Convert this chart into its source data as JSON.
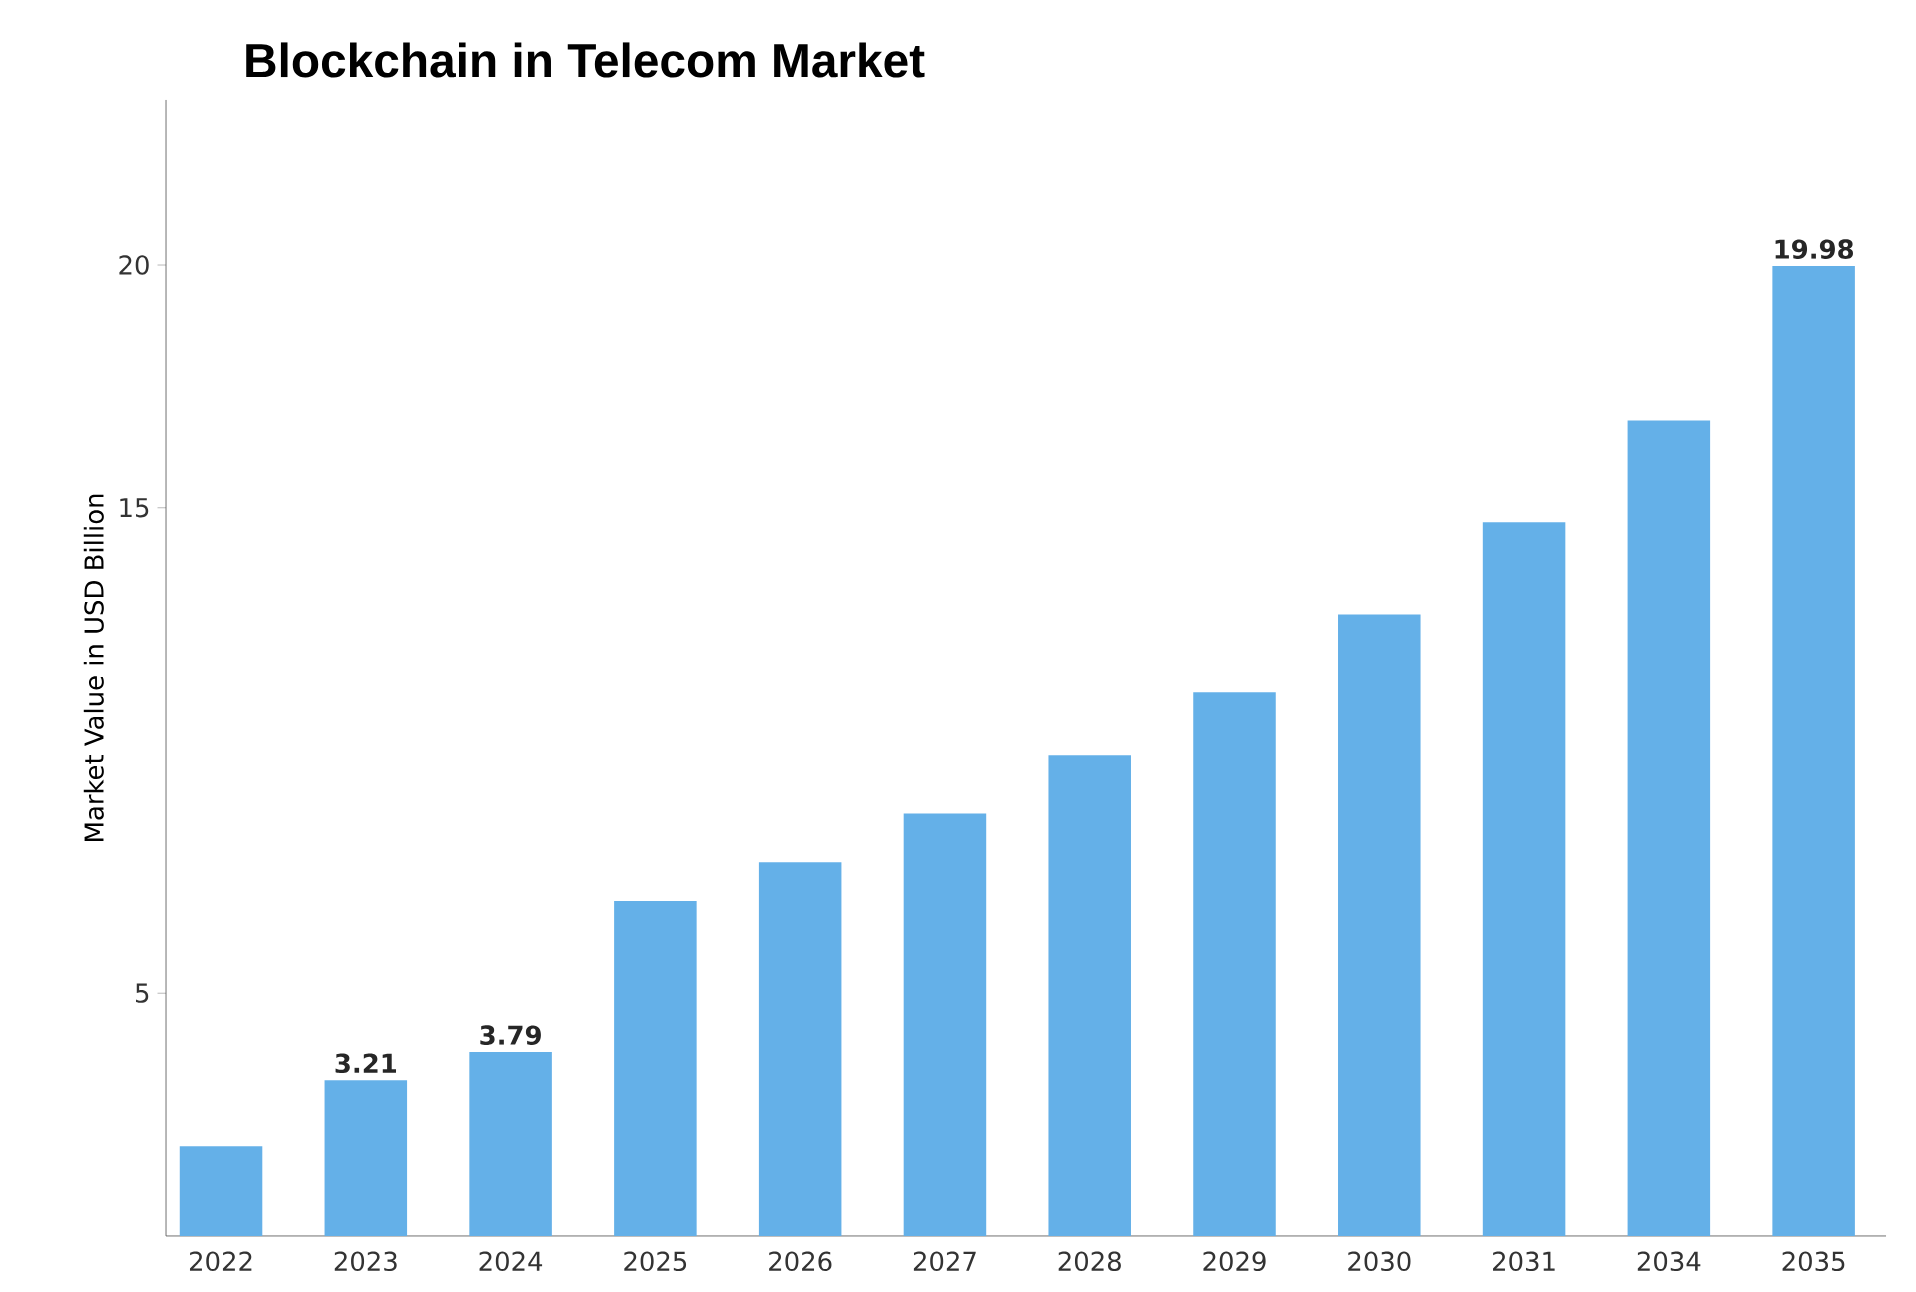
{
  "chart_data": {
    "type": "bar",
    "title": "Blockchain in Telecom Market",
    "ylabel": "Market Value in USD Billion",
    "categories": [
      "2022",
      "2023",
      "2024",
      "2025",
      "2026",
      "2027",
      "2028",
      "2029",
      "2030",
      "2031",
      "2034",
      "2035"
    ],
    "values": [
      1.85,
      3.21,
      3.79,
      6.9,
      7.7,
      8.7,
      9.9,
      11.2,
      12.8,
      14.7,
      16.8,
      19.98
    ],
    "value_labels": [
      null,
      "3.21",
      "3.79",
      null,
      null,
      null,
      null,
      null,
      null,
      null,
      null,
      "19.98"
    ],
    "color": "#64b0e8",
    "ylim": [
      0,
      23.4
    ],
    "yticks": [
      5,
      15,
      20
    ],
    "grid": false
  }
}
